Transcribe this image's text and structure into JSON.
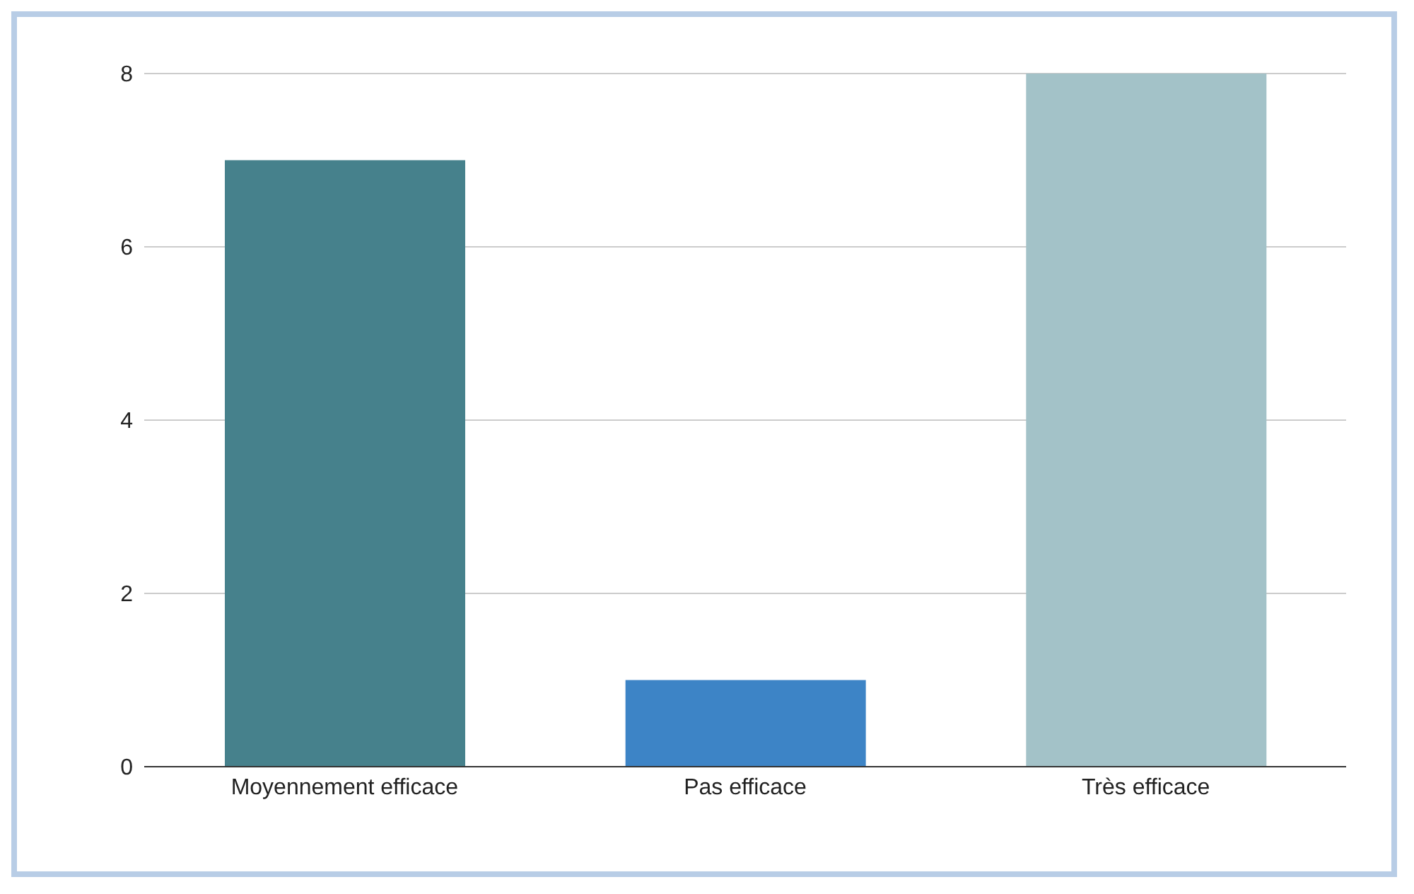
{
  "chart_data": {
    "type": "bar",
    "categories": [
      "Moyennement efficace",
      "Pas efficace",
      "Très efficace"
    ],
    "values": [
      7,
      1,
      8
    ],
    "colors": [
      "#46818c",
      "#3d84c6",
      "#a3c2c8"
    ],
    "ylim": [
      0,
      8
    ],
    "yticks": [
      0,
      2,
      4,
      6,
      8
    ],
    "grid": "y"
  }
}
